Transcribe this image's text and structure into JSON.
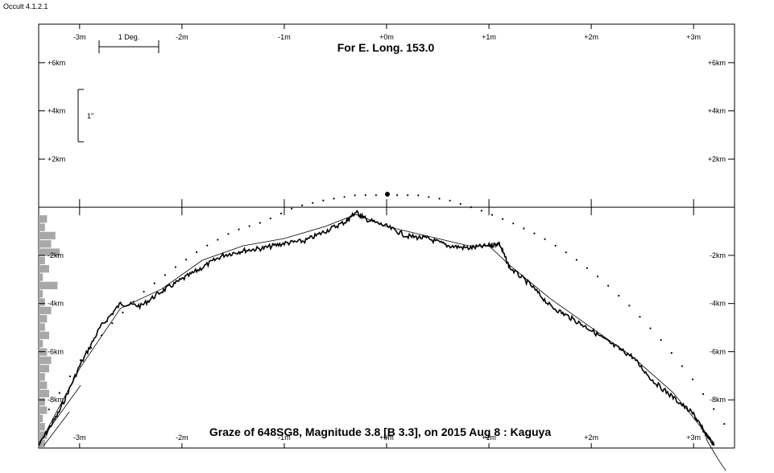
{
  "app_title": "Occult 4.1.2.1",
  "chart_data": {
    "type": "line",
    "title": "For E. Long. 153.0",
    "footer": "Graze of  648SG8,  Magnitude 3.8 [B 3.3],  on 2015 Aug  8  :  Kaguya",
    "xlabel": "",
    "ylabel": "",
    "x_ticks": [
      "-3m",
      "-2m",
      "-1m",
      "+0m",
      "+1m",
      "+2m",
      "+3m"
    ],
    "y_ticks_top": [
      "+6km",
      "+4km",
      "+2km"
    ],
    "y_ticks_bottom": [
      "-2km",
      "-4km",
      "-6km",
      "-8km"
    ],
    "xlim": [
      -3.4,
      3.4
    ],
    "ylim": [
      -10,
      7.6
    ],
    "scale_bar_label": "1 Deg.",
    "arcsec_bar_label": "1\"",
    "series": [
      {
        "style": "rugged-profile",
        "x": [
          -3.4,
          -3.2,
          -3.0,
          -2.8,
          -2.6,
          -2.4,
          -2.2,
          -2.0,
          -1.8,
          -1.6,
          -1.4,
          -1.2,
          -1.0,
          -0.8,
          -0.6,
          -0.4,
          -0.3,
          -0.2,
          0.0,
          0.2,
          0.4,
          0.6,
          0.8,
          1.0,
          1.1,
          1.2,
          1.4,
          1.6,
          1.8,
          2.0,
          2.2,
          2.4,
          2.6,
          2.8,
          3.0,
          3.1,
          3.2
        ],
        "y": [
          -9.9,
          -8.5,
          -6.6,
          -5.0,
          -4.0,
          -4.1,
          -3.5,
          -3.0,
          -2.5,
          -2.0,
          -1.8,
          -1.7,
          -1.5,
          -1.4,
          -1.0,
          -0.6,
          -0.2,
          -0.5,
          -0.8,
          -1.2,
          -1.3,
          -1.6,
          -1.7,
          -1.6,
          -1.5,
          -2.5,
          -3.2,
          -4.1,
          -4.6,
          -5.1,
          -5.7,
          -6.2,
          -7.2,
          -7.9,
          -8.6,
          -9.3,
          -9.9
        ]
      },
      {
        "style": "smooth-limb",
        "x": [
          -3.4,
          -3.0,
          -2.6,
          -2.2,
          -1.8,
          -1.4,
          -1.0,
          -0.6,
          -0.3,
          0.0,
          0.4,
          0.8,
          1.0,
          1.2,
          1.6,
          2.0,
          2.4,
          2.8,
          3.2
        ],
        "y": [
          -9.9,
          -6.7,
          -4.2,
          -3.4,
          -2.2,
          -1.6,
          -1.3,
          -0.8,
          -0.3,
          -0.8,
          -1.2,
          -1.6,
          -1.6,
          -2.4,
          -3.8,
          -5.0,
          -6.2,
          -7.7,
          -9.8
        ]
      },
      {
        "style": "dotted-mean-limb",
        "x": [
          -3.3,
          -3.0,
          -2.7,
          -2.4,
          -2.1,
          -1.8,
          -1.5,
          -1.2,
          -0.9,
          -0.6,
          -0.3,
          0.0,
          0.3,
          0.6,
          0.9,
          1.2,
          1.5,
          1.8,
          2.1,
          2.4,
          2.7,
          3.0,
          3.3
        ],
        "y": [
          -8.4,
          -6.4,
          -4.9,
          -3.6,
          -2.6,
          -1.7,
          -1.0,
          -0.6,
          0.0,
          0.3,
          0.5,
          0.5,
          0.5,
          0.3,
          -0.1,
          -0.6,
          -1.2,
          -2.0,
          -3.0,
          -4.2,
          -5.6,
          -7.2,
          -9.0
        ]
      }
    ],
    "histogram_left": [
      0.4,
      0.3,
      0.8,
      0.6,
      1.0,
      0.3,
      0.5,
      0.2,
      0.9,
      0.2,
      0.3,
      0.6,
      0.4,
      0.3,
      0.5,
      0.2,
      0.4,
      0.6,
      0.5,
      0.3,
      0.4,
      0.5,
      0.3,
      0.4,
      0.2,
      0.3,
      0.4,
      0.3
    ]
  }
}
